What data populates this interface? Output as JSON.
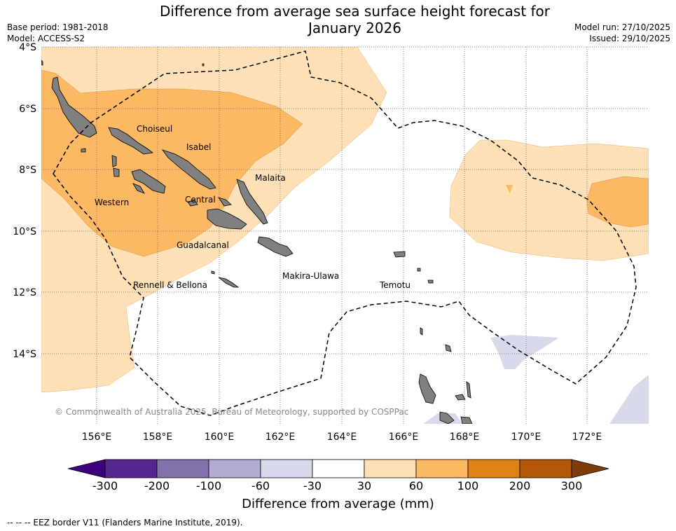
{
  "title_line1": "Difference from average sea surface height forecast for",
  "title_line2": "January 2026",
  "meta": {
    "base_period": "Base period: 1981-2018",
    "model": "Model: ACCESS-S2",
    "model_run": "Model run: 27/10/2025",
    "issued": "Issued: 29/10/2025"
  },
  "axes": {
    "lat_ticks": [
      "4°S",
      "6°S",
      "8°S",
      "10°S",
      "12°S",
      "14°S"
    ],
    "lon_ticks": [
      "156°E",
      "158°E",
      "160°E",
      "162°E",
      "164°E",
      "166°E",
      "168°E",
      "170°E",
      "172°E"
    ]
  },
  "places": {
    "choiseul": "Choiseul",
    "isabel": "Isabel",
    "malaita": "Malaita",
    "western": "Western",
    "central": "Central",
    "guadalcanal": "Guadalcanal",
    "makira": "Makira-Ulawa",
    "rennell": "Rennell & Bellona",
    "temotu": "Temotu"
  },
  "copyright": "© Commonwealth of Australia 2025, Bureau of Meteorology, supported by COSPPac",
  "colorbar": {
    "label": "Difference from average (mm)",
    "ticks": [
      "-300",
      "-200",
      "-100",
      "-60",
      "-30",
      "30",
      "60",
      "100",
      "200",
      "300"
    ],
    "colors": [
      "#3f007d",
      "#54278f",
      "#8073ac",
      "#b2abd2",
      "#d8daeb",
      "#ffffff",
      "#fee0b6",
      "#fdb863",
      "#e08214",
      "#b35806",
      "#7f3b08"
    ]
  },
  "eez_legend": "--  --  -- EEZ border V11 (Flanders Marine Institute, 2019)."
}
